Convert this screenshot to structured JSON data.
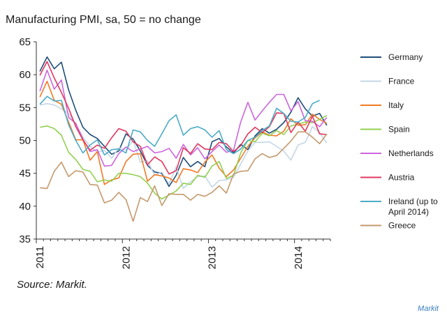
{
  "page": {
    "source": "Source: Markit.",
    "brand": "Markit"
  },
  "chart_data": {
    "type": "line",
    "title": "Manufacturing PMI, sa, 50 = no change",
    "xlabel": "",
    "ylabel": "",
    "ylim": [
      35,
      65
    ],
    "yticks": [
      35,
      40,
      45,
      50,
      55,
      60,
      65
    ],
    "x_start": "2011-01",
    "x_frequency": "monthly",
    "xticks": [
      "2011",
      "2012",
      "2013",
      "2014"
    ],
    "grid": false,
    "legend_position": "right",
    "series": [
      {
        "name": "Germany",
        "color": "#1f4e79",
        "values": [
          60.5,
          62.7,
          60.9,
          61.9,
          57.7,
          54.6,
          52.0,
          50.9,
          50.3,
          49.1,
          47.9,
          48.4,
          51.0,
          50.2,
          48.4,
          46.2,
          45.2,
          45.0,
          43.0,
          44.7,
          47.4,
          46.0,
          46.8,
          46.0,
          49.8,
          50.3,
          49.0,
          48.1,
          49.4,
          48.6,
          50.7,
          51.8,
          51.1,
          51.7,
          52.7,
          54.3,
          56.5,
          54.8,
          53.7,
          54.1,
          52.3
        ]
      },
      {
        "name": "France",
        "color": "#c5d7e8",
        "values": [
          55.4,
          55.6,
          55.4,
          54.8,
          54.1,
          52.5,
          50.5,
          49.1,
          48.2,
          48.5,
          47.3,
          48.9,
          48.5,
          50.0,
          46.7,
          46.9,
          44.7,
          45.2,
          43.4,
          46.0,
          42.7,
          43.7,
          44.5,
          44.6,
          42.9,
          43.9,
          44.0,
          44.4,
          46.4,
          48.4,
          49.7,
          49.7,
          49.8,
          49.1,
          48.4,
          47.0,
          49.3,
          49.7,
          52.1,
          51.2,
          49.6
        ]
      },
      {
        "name": "Italy",
        "color": "#f07a24",
        "values": [
          56.6,
          59.0,
          56.1,
          55.5,
          52.8,
          50.1,
          50.1,
          47.0,
          48.3,
          43.3,
          44.0,
          44.3,
          46.8,
          47.9,
          48.0,
          43.8,
          44.8,
          44.6,
          44.3,
          43.6,
          45.7,
          45.5,
          45.1,
          46.7,
          47.8,
          45.8,
          44.5,
          45.5,
          47.3,
          49.1,
          50.4,
          51.3,
          50.8,
          50.7,
          51.4,
          53.3,
          52.3,
          52.4,
          54.0,
          53.2,
          52.6
        ]
      },
      {
        "name": "Spain",
        "color": "#92d050",
        "values": [
          52.0,
          52.2,
          51.8,
          50.8,
          48.2,
          47.1,
          45.6,
          45.3,
          43.7,
          44.0,
          43.8,
          45.0,
          45.0,
          44.8,
          44.5,
          43.5,
          42.0,
          41.1,
          41.7,
          42.3,
          43.5,
          43.3,
          44.7,
          44.4,
          46.1,
          46.8,
          44.2,
          44.7,
          48.1,
          50.0,
          49.8,
          51.1,
          50.7,
          51.5,
          50.9,
          52.2,
          52.5,
          52.8,
          52.7,
          53.2,
          53.8
        ]
      },
      {
        "name": "Netherlands",
        "color": "#cc66dd",
        "values": [
          57.5,
          60.7,
          57.8,
          59.2,
          53.5,
          52.6,
          50.2,
          48.3,
          48.6,
          46.1,
          46.2,
          48.0,
          49.0,
          48.3,
          48.7,
          49.1,
          48.1,
          48.3,
          48.8,
          47.3,
          49.4,
          47.8,
          48.9,
          47.2,
          48.3,
          49.3,
          48.2,
          48.5,
          52.8,
          55.8,
          53.1,
          54.5,
          55.8,
          57.0,
          57.0,
          54.5,
          55.9,
          53.0,
          52.9,
          52.1,
          53.5
        ]
      },
      {
        "name": "Austria",
        "color": "#e0385e",
        "values": [
          59.9,
          62.0,
          59.5,
          57.3,
          54.9,
          52.1,
          50.1,
          48.5,
          49.3,
          48.8,
          50.4,
          51.8,
          51.4,
          49.8,
          49.1,
          46.3,
          47.5,
          46.8,
          44.9,
          45.4,
          48.9,
          48.0,
          49.5,
          48.7,
          48.6,
          49.7,
          49.5,
          48.3,
          49.2,
          51.0,
          52.0,
          51.2,
          52.1,
          54.2,
          54.1,
          51.2,
          52.8,
          51.4,
          53.7,
          51.0,
          50.9
        ]
      },
      {
        "name": "Ireland (up to April 2014)",
        "color": "#4bacc6",
        "values": [
          55.5,
          56.7,
          56.0,
          56.1,
          52.4,
          50.0,
          48.1,
          49.3,
          50.1,
          47.8,
          48.6,
          48.7,
          48.1,
          51.6,
          51.3,
          50.0,
          49.1,
          51.0,
          53.0,
          53.9,
          50.8,
          51.8,
          52.1,
          51.6,
          50.5,
          51.5,
          48.6,
          48.0,
          48.7,
          50.0,
          50.5,
          51.5,
          52.2,
          54.9,
          54.1,
          52.9,
          52.8,
          53.5,
          55.6,
          56.1
        ]
      },
      {
        "name": "Greece",
        "color": "#c49a6c",
        "values": [
          42.8,
          42.7,
          45.3,
          46.7,
          44.5,
          45.4,
          45.2,
          43.3,
          43.2,
          40.5,
          40.9,
          42.1,
          41.0,
          37.7,
          41.3,
          40.7,
          43.1,
          40.1,
          41.9,
          41.8,
          41.8,
          40.9,
          41.8,
          41.5,
          42.1,
          43.1,
          42.0,
          44.9,
          45.3,
          45.4,
          47.2,
          48.0,
          47.4,
          47.7,
          48.8,
          49.9,
          51.3,
          51.3,
          50.5,
          49.5,
          51.0
        ]
      }
    ]
  }
}
